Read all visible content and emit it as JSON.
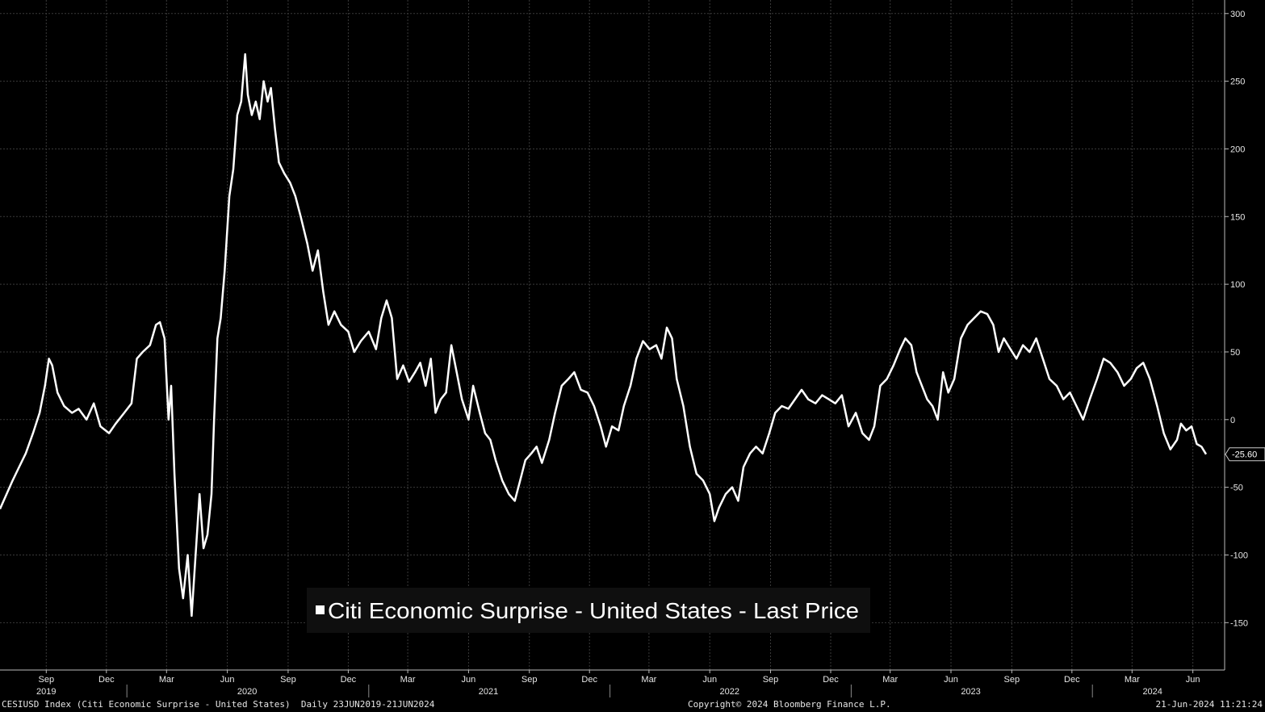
{
  "footer": {
    "left": "CESIUSD Index (Citi Economic Surprise - United States)  Daily 23JUN2019-21JUN2024",
    "center": "Copyright© 2024 Bloomberg Finance L.P.",
    "right": "21-Jun-2024 11:21:24"
  },
  "chart_data": {
    "type": "line",
    "title": "",
    "legend": {
      "label": "Citi Economic Surprise - United States - Last Price",
      "position": "bottom-center"
    },
    "series": [
      {
        "name": "Citi Economic Surprise - United States - Last Price",
        "color": "#ffffff",
        "points": [
          [
            "2019-06-23",
            -66
          ],
          [
            "2019-07-03",
            -55
          ],
          [
            "2019-07-12",
            -45
          ],
          [
            "2019-07-22",
            -35
          ],
          [
            "2019-08-01",
            -25
          ],
          [
            "2019-08-12",
            -10
          ],
          [
            "2019-08-22",
            5
          ],
          [
            "2019-08-30",
            25
          ],
          [
            "2019-09-05",
            45
          ],
          [
            "2019-09-10",
            40
          ],
          [
            "2019-09-18",
            20
          ],
          [
            "2019-09-28",
            10
          ],
          [
            "2019-10-10",
            5
          ],
          [
            "2019-10-20",
            8
          ],
          [
            "2019-11-01",
            0
          ],
          [
            "2019-11-12",
            12
          ],
          [
            "2019-11-22",
            -5
          ],
          [
            "2019-12-05",
            -10
          ],
          [
            "2019-12-15",
            -3
          ],
          [
            "2019-12-28",
            5
          ],
          [
            "2020-01-08",
            12
          ],
          [
            "2020-01-16",
            45
          ],
          [
            "2020-01-25",
            50
          ],
          [
            "2020-02-05",
            55
          ],
          [
            "2020-02-14",
            70
          ],
          [
            "2020-02-20",
            72
          ],
          [
            "2020-02-27",
            60
          ],
          [
            "2020-03-04",
            0
          ],
          [
            "2020-03-08",
            25
          ],
          [
            "2020-03-13",
            -40
          ],
          [
            "2020-03-20",
            -110
          ],
          [
            "2020-03-26",
            -132
          ],
          [
            "2020-04-02",
            -100
          ],
          [
            "2020-04-08",
            -145
          ],
          [
            "2020-04-14",
            -100
          ],
          [
            "2020-04-20",
            -55
          ],
          [
            "2020-04-26",
            -95
          ],
          [
            "2020-05-02",
            -85
          ],
          [
            "2020-05-08",
            -55
          ],
          [
            "2020-05-12",
            0
          ],
          [
            "2020-05-17",
            60
          ],
          [
            "2020-05-22",
            75
          ],
          [
            "2020-05-28",
            110
          ],
          [
            "2020-06-04",
            165
          ],
          [
            "2020-06-10",
            185
          ],
          [
            "2020-06-16",
            225
          ],
          [
            "2020-06-22",
            235
          ],
          [
            "2020-06-28",
            270
          ],
          [
            "2020-07-02",
            240
          ],
          [
            "2020-07-08",
            225
          ],
          [
            "2020-07-14",
            235
          ],
          [
            "2020-07-20",
            222
          ],
          [
            "2020-07-26",
            250
          ],
          [
            "2020-08-01",
            235
          ],
          [
            "2020-08-06",
            245
          ],
          [
            "2020-08-12",
            215
          ],
          [
            "2020-08-18",
            190
          ],
          [
            "2020-08-26",
            182
          ],
          [
            "2020-09-04",
            175
          ],
          [
            "2020-09-12",
            165
          ],
          [
            "2020-09-20",
            150
          ],
          [
            "2020-09-30",
            130
          ],
          [
            "2020-10-08",
            110
          ],
          [
            "2020-10-16",
            125
          ],
          [
            "2020-10-24",
            95
          ],
          [
            "2020-11-01",
            70
          ],
          [
            "2020-11-10",
            80
          ],
          [
            "2020-11-20",
            70
          ],
          [
            "2020-12-01",
            65
          ],
          [
            "2020-12-10",
            50
          ],
          [
            "2020-12-20",
            58
          ],
          [
            "2021-01-01",
            65
          ],
          [
            "2021-01-12",
            52
          ],
          [
            "2021-01-20",
            75
          ],
          [
            "2021-01-28",
            88
          ],
          [
            "2021-02-05",
            75
          ],
          [
            "2021-02-13",
            30
          ],
          [
            "2021-02-22",
            40
          ],
          [
            "2021-03-03",
            28
          ],
          [
            "2021-03-12",
            35
          ],
          [
            "2021-03-20",
            42
          ],
          [
            "2021-03-28",
            25
          ],
          [
            "2021-04-05",
            45
          ],
          [
            "2021-04-12",
            5
          ],
          [
            "2021-04-20",
            15
          ],
          [
            "2021-04-28",
            20
          ],
          [
            "2021-05-06",
            55
          ],
          [
            "2021-05-14",
            35
          ],
          [
            "2021-05-22",
            15
          ],
          [
            "2021-06-01",
            0
          ],
          [
            "2021-06-08",
            25
          ],
          [
            "2021-06-18",
            5
          ],
          [
            "2021-06-26",
            -10
          ],
          [
            "2021-07-04",
            -15
          ],
          [
            "2021-07-12",
            -30
          ],
          [
            "2021-07-22",
            -45
          ],
          [
            "2021-08-01",
            -55
          ],
          [
            "2021-08-10",
            -60
          ],
          [
            "2021-08-18",
            -45
          ],
          [
            "2021-08-26",
            -30
          ],
          [
            "2021-09-04",
            -25
          ],
          [
            "2021-09-12",
            -20
          ],
          [
            "2021-09-20",
            -32
          ],
          [
            "2021-10-01",
            -15
          ],
          [
            "2021-10-10",
            5
          ],
          [
            "2021-10-20",
            25
          ],
          [
            "2021-10-30",
            30
          ],
          [
            "2021-11-08",
            35
          ],
          [
            "2021-11-18",
            22
          ],
          [
            "2021-11-28",
            20
          ],
          [
            "2021-12-08",
            10
          ],
          [
            "2021-12-18",
            -5
          ],
          [
            "2021-12-26",
            -20
          ],
          [
            "2022-01-04",
            -5
          ],
          [
            "2022-01-14",
            -8
          ],
          [
            "2022-01-22",
            10
          ],
          [
            "2022-02-01",
            25
          ],
          [
            "2022-02-10",
            45
          ],
          [
            "2022-02-20",
            58
          ],
          [
            "2022-03-02",
            52
          ],
          [
            "2022-03-12",
            55
          ],
          [
            "2022-03-20",
            45
          ],
          [
            "2022-03-28",
            68
          ],
          [
            "2022-04-05",
            60
          ],
          [
            "2022-04-12",
            30
          ],
          [
            "2022-04-22",
            10
          ],
          [
            "2022-05-02",
            -20
          ],
          [
            "2022-05-12",
            -40
          ],
          [
            "2022-05-22",
            -45
          ],
          [
            "2022-06-01",
            -55
          ],
          [
            "2022-06-08",
            -75
          ],
          [
            "2022-06-15",
            -65
          ],
          [
            "2022-06-25",
            -55
          ],
          [
            "2022-07-05",
            -50
          ],
          [
            "2022-07-14",
            -60
          ],
          [
            "2022-07-22",
            -35
          ],
          [
            "2022-08-01",
            -25
          ],
          [
            "2022-08-10",
            -20
          ],
          [
            "2022-08-20",
            -25
          ],
          [
            "2022-08-30",
            -10
          ],
          [
            "2022-09-08",
            5
          ],
          [
            "2022-09-18",
            10
          ],
          [
            "2022-09-28",
            8
          ],
          [
            "2022-10-08",
            15
          ],
          [
            "2022-10-18",
            22
          ],
          [
            "2022-10-28",
            15
          ],
          [
            "2022-11-08",
            12
          ],
          [
            "2022-11-18",
            18
          ],
          [
            "2022-11-28",
            15
          ],
          [
            "2022-12-08",
            12
          ],
          [
            "2022-12-18",
            18
          ],
          [
            "2022-12-28",
            -5
          ],
          [
            "2023-01-08",
            5
          ],
          [
            "2023-01-18",
            -10
          ],
          [
            "2023-01-28",
            -15
          ],
          [
            "2023-02-05",
            -5
          ],
          [
            "2023-02-14",
            25
          ],
          [
            "2023-02-24",
            30
          ],
          [
            "2023-03-06",
            40
          ],
          [
            "2023-03-16",
            52
          ],
          [
            "2023-03-24",
            60
          ],
          [
            "2023-04-02",
            55
          ],
          [
            "2023-04-10",
            35
          ],
          [
            "2023-04-18",
            25
          ],
          [
            "2023-04-26",
            15
          ],
          [
            "2023-05-04",
            10
          ],
          [
            "2023-05-12",
            0
          ],
          [
            "2023-05-20",
            35
          ],
          [
            "2023-05-28",
            20
          ],
          [
            "2023-06-06",
            30
          ],
          [
            "2023-06-16",
            60
          ],
          [
            "2023-06-26",
            70
          ],
          [
            "2023-07-06",
            75
          ],
          [
            "2023-07-16",
            80
          ],
          [
            "2023-07-26",
            78
          ],
          [
            "2023-08-04",
            70
          ],
          [
            "2023-08-12",
            50
          ],
          [
            "2023-08-20",
            60
          ],
          [
            "2023-08-30",
            52
          ],
          [
            "2023-09-08",
            45
          ],
          [
            "2023-09-18",
            55
          ],
          [
            "2023-09-28",
            50
          ],
          [
            "2023-10-08",
            60
          ],
          [
            "2023-10-18",
            45
          ],
          [
            "2023-10-28",
            30
          ],
          [
            "2023-11-08",
            25
          ],
          [
            "2023-11-18",
            15
          ],
          [
            "2023-11-28",
            20
          ],
          [
            "2023-12-08",
            10
          ],
          [
            "2023-12-18",
            0
          ],
          [
            "2023-12-28",
            15
          ],
          [
            "2024-01-08",
            30
          ],
          [
            "2024-01-18",
            45
          ],
          [
            "2024-01-28",
            42
          ],
          [
            "2024-02-08",
            35
          ],
          [
            "2024-02-18",
            25
          ],
          [
            "2024-02-28",
            30
          ],
          [
            "2024-03-08",
            38
          ],
          [
            "2024-03-18",
            42
          ],
          [
            "2024-03-28",
            30
          ],
          [
            "2024-04-08",
            10
          ],
          [
            "2024-04-18",
            -10
          ],
          [
            "2024-04-28",
            -22
          ],
          [
            "2024-05-08",
            -15
          ],
          [
            "2024-05-14",
            -3
          ],
          [
            "2024-05-22",
            -8
          ],
          [
            "2024-05-30",
            -5
          ],
          [
            "2024-06-07",
            -18
          ],
          [
            "2024-06-14",
            -20
          ],
          [
            "2024-06-21",
            -25.6
          ]
        ]
      }
    ],
    "last_value_label": "-25.60",
    "y_axis": {
      "position": "right",
      "ylim": [
        -185,
        310
      ],
      "ticks": [
        300,
        250,
        200,
        150,
        100,
        50,
        0,
        -50,
        -100,
        -150
      ]
    },
    "x_axis": {
      "range": [
        "2019-06-23",
        "2024-06-21"
      ],
      "month_ticks": [
        {
          "label": "Sep",
          "date": "2019-09-01"
        },
        {
          "label": "Dec",
          "date": "2019-12-01"
        },
        {
          "label": "Mar",
          "date": "2020-03-01"
        },
        {
          "label": "Jun",
          "date": "2020-06-01"
        },
        {
          "label": "Sep",
          "date": "2020-09-01"
        },
        {
          "label": "Dec",
          "date": "2020-12-01"
        },
        {
          "label": "Mar",
          "date": "2021-03-01"
        },
        {
          "label": "Jun",
          "date": "2021-06-01"
        },
        {
          "label": "Sep",
          "date": "2021-09-01"
        },
        {
          "label": "Dec",
          "date": "2021-12-01"
        },
        {
          "label": "Mar",
          "date": "2022-03-01"
        },
        {
          "label": "Jun",
          "date": "2022-06-01"
        },
        {
          "label": "Sep",
          "date": "2022-09-01"
        },
        {
          "label": "Dec",
          "date": "2022-12-01"
        },
        {
          "label": "Mar",
          "date": "2023-03-01"
        },
        {
          "label": "Jun",
          "date": "2023-06-01"
        },
        {
          "label": "Sep",
          "date": "2023-09-01"
        },
        {
          "label": "Dec",
          "date": "2023-12-01"
        },
        {
          "label": "Mar",
          "date": "2024-03-01"
        },
        {
          "label": "Jun",
          "date": "2024-06-01"
        }
      ],
      "year_labels": [
        {
          "label": "2019",
          "date": "2019-09-01"
        },
        {
          "label": "2020",
          "date": "2020-07-01"
        },
        {
          "label": "2021",
          "date": "2021-07-01"
        },
        {
          "label": "2022",
          "date": "2022-07-01"
        },
        {
          "label": "2023",
          "date": "2023-07-01"
        },
        {
          "label": "2024",
          "date": "2024-04-01"
        }
      ],
      "year_dividers": [
        "2020-01-01",
        "2021-01-01",
        "2022-01-01",
        "2023-01-01",
        "2024-01-01"
      ]
    },
    "grid": true,
    "colors": {
      "background": "#000000",
      "line": "#ffffff",
      "grid": "#3a3a3a",
      "text": "#e6e6e6"
    }
  }
}
